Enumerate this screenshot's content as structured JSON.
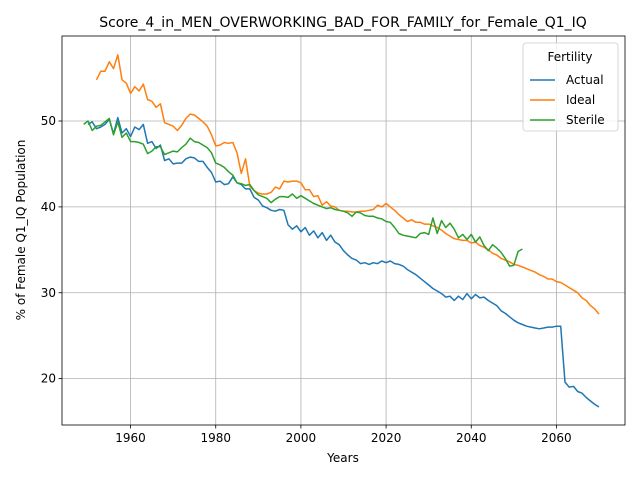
{
  "chart_data": {
    "type": "line",
    "title": "Score_4_in_MEN_OVERWORKING_BAD_FOR_FAMILY_for_Female_Q1_IQ",
    "xlabel": "Years",
    "ylabel": "% of Female Q1_IQ Population",
    "xlim": [
      1943.9,
      2076.1
    ],
    "ylim": [
      14.6,
      59.9
    ],
    "xticks": [
      1960,
      1980,
      2000,
      2020,
      2040,
      2060
    ],
    "yticks": [
      20,
      30,
      40,
      50
    ],
    "grid": true,
    "legend": {
      "title": "Fertility",
      "placement": "top-right"
    },
    "series": [
      {
        "name": "Actual",
        "color": "#1f77b4",
        "x": [
          1950,
          1951,
          1952,
          1953,
          1954,
          1955,
          1956,
          1957,
          1958,
          1959,
          1960,
          1961,
          1962,
          1963,
          1964,
          1965,
          1966,
          1967,
          1968,
          1969,
          1970,
          1971,
          1972,
          1973,
          1974,
          1975,
          1976,
          1977,
          1978,
          1979,
          1980,
          1981,
          1982,
          1983,
          1984,
          1985,
          1986,
          1987,
          1988,
          1989,
          1990,
          1991,
          1992,
          1993,
          1994,
          1995,
          1996,
          1997,
          1998,
          1999,
          2000,
          2001,
          2002,
          2003,
          2004,
          2005,
          2006,
          2007,
          2008,
          2009,
          2010,
          2011,
          2012,
          2013,
          2014,
          2015,
          2016,
          2017,
          2018,
          2019,
          2020,
          2021,
          2022,
          2023,
          2024,
          2025,
          2026,
          2027,
          2028,
          2029,
          2030,
          2031,
          2032,
          2033,
          2034,
          2035,
          2036,
          2037,
          2038,
          2039,
          2040,
          2041,
          2042,
          2043,
          2044,
          2045,
          2046,
          2047,
          2048,
          2049,
          2050,
          2051,
          2052,
          2053,
          2054,
          2055,
          2056,
          2057,
          2058,
          2059,
          2060,
          2061,
          2062,
          2063,
          2064,
          2065,
          2066,
          2067,
          2068,
          2069,
          2070
        ],
        "y": [
          49.6,
          49.9,
          49.1,
          49.3,
          49.6,
          50.2,
          48.5,
          50.4,
          48.6,
          49.1,
          48.2,
          49.3,
          49.0,
          49.6,
          47.4,
          47.6,
          46.8,
          47.2,
          45.4,
          45.6,
          45.0,
          45.1,
          45.1,
          45.6,
          45.8,
          45.7,
          45.3,
          45.3,
          44.6,
          44.0,
          42.9,
          43.0,
          42.6,
          42.7,
          43.5,
          42.8,
          42.6,
          42.1,
          42.1,
          41.1,
          40.8,
          40.1,
          39.9,
          39.6,
          39.5,
          39.7,
          39.6,
          37.9,
          37.4,
          37.8,
          37.1,
          37.6,
          36.7,
          37.2,
          36.4,
          37.0,
          36.1,
          36.7,
          35.9,
          35.6,
          34.9,
          34.4,
          34.0,
          33.8,
          33.4,
          33.5,
          33.3,
          33.5,
          33.4,
          33.7,
          33.5,
          33.7,
          33.4,
          33.3,
          33.1,
          32.7,
          32.4,
          32.1,
          31.7,
          31.3,
          30.9,
          30.5,
          30.2,
          29.9,
          29.5,
          29.6,
          29.1,
          29.6,
          29.2,
          29.9,
          29.3,
          29.8,
          29.4,
          29.5,
          29.1,
          28.8,
          28.5,
          27.9,
          27.6,
          27.2,
          26.8,
          26.5,
          26.3,
          26.1,
          26.0,
          25.9,
          25.8,
          25.9,
          26.0,
          26.0,
          26.1,
          26.1,
          19.6,
          19.0,
          19.1,
          18.5,
          18.3,
          17.8,
          17.4,
          17.0,
          16.7
        ]
      },
      {
        "name": "Ideal",
        "color": "#ff7f0e",
        "x": [
          1952,
          1953,
          1954,
          1955,
          1956,
          1957,
          1958,
          1959,
          1960,
          1961,
          1962,
          1963,
          1964,
          1965,
          1966,
          1967,
          1968,
          1969,
          1970,
          1971,
          1972,
          1973,
          1974,
          1975,
          1976,
          1977,
          1978,
          1979,
          1980,
          1981,
          1982,
          1983,
          1984,
          1985,
          1986,
          1987,
          1988,
          1989,
          1990,
          1991,
          1992,
          1993,
          1994,
          1995,
          1996,
          1997,
          1998,
          1999,
          2000,
          2001,
          2002,
          2003,
          2004,
          2005,
          2006,
          2007,
          2008,
          2009,
          2010,
          2011,
          2012,
          2013,
          2014,
          2015,
          2016,
          2017,
          2018,
          2019,
          2020,
          2021,
          2022,
          2023,
          2024,
          2025,
          2026,
          2027,
          2028,
          2029,
          2030,
          2031,
          2032,
          2033,
          2034,
          2035,
          2036,
          2037,
          2038,
          2039,
          2040,
          2041,
          2042,
          2043,
          2044,
          2045,
          2046,
          2047,
          2048,
          2049,
          2050,
          2051,
          2052,
          2053,
          2054,
          2055,
          2056,
          2057,
          2058,
          2059,
          2060,
          2061,
          2062,
          2063,
          2064,
          2065,
          2066,
          2067,
          2068,
          2069,
          2070
        ],
        "y": [
          54.8,
          55.8,
          55.8,
          56.9,
          56.1,
          57.7,
          54.8,
          54.4,
          53.2,
          54.0,
          53.5,
          54.3,
          52.5,
          52.3,
          51.6,
          52.0,
          49.8,
          49.6,
          49.4,
          48.9,
          49.5,
          50.3,
          50.8,
          50.7,
          50.3,
          49.9,
          49.4,
          48.4,
          47.1,
          47.2,
          47.5,
          47.4,
          47.5,
          46.3,
          43.9,
          45.6,
          42.4,
          41.9,
          41.6,
          41.5,
          41.5,
          41.7,
          42.3,
          42.1,
          43.0,
          42.9,
          43.0,
          43.0,
          42.8,
          42.0,
          42.0,
          41.2,
          41.3,
          40.2,
          40.6,
          40.1,
          40.0,
          39.6,
          39.5,
          39.5,
          39.4,
          39.4,
          39.5,
          39.5,
          39.6,
          39.7,
          40.2,
          40.0,
          40.4,
          40.0,
          39.6,
          39.1,
          38.7,
          38.3,
          38.5,
          38.2,
          38.2,
          38.0,
          38.0,
          37.8,
          37.6,
          37.3,
          36.9,
          36.6,
          36.3,
          36.2,
          36.1,
          36.1,
          35.8,
          35.9,
          35.5,
          35.3,
          35.0,
          34.6,
          34.4,
          34.0,
          33.8,
          33.6,
          33.3,
          33.2,
          33.0,
          32.8,
          32.6,
          32.4,
          32.1,
          31.9,
          31.6,
          31.6,
          31.3,
          31.2,
          30.9,
          30.6,
          30.3,
          30.0,
          29.4,
          29.1,
          28.5,
          28.1,
          27.5
        ]
      },
      {
        "name": "Sterile",
        "color": "#2ca02c",
        "x": [
          1949,
          1950,
          1951,
          1952,
          1953,
          1954,
          1955,
          1956,
          1957,
          1958,
          1959,
          1960,
          1961,
          1962,
          1963,
          1964,
          1965,
          1966,
          1967,
          1968,
          1969,
          1970,
          1971,
          1972,
          1973,
          1974,
          1975,
          1976,
          1977,
          1978,
          1979,
          1980,
          1981,
          1982,
          1983,
          1984,
          1985,
          1986,
          1987,
          1988,
          1989,
          1990,
          1991,
          1992,
          1993,
          1994,
          1995,
          1996,
          1997,
          1998,
          1999,
          2000,
          2001,
          2002,
          2003,
          2004,
          2005,
          2006,
          2007,
          2008,
          2009,
          2010,
          2011,
          2012,
          2013,
          2014,
          2015,
          2016,
          2017,
          2018,
          2019,
          2020,
          2021,
          2022,
          2023,
          2024,
          2025,
          2026,
          2027,
          2028,
          2029,
          2030,
          2031,
          2032,
          2033,
          2034,
          2035,
          2036,
          2037,
          2038,
          2039,
          2040,
          2041,
          2042,
          2043,
          2044,
          2045,
          2046,
          2047,
          2048,
          2049,
          2050,
          2051,
          2052
        ],
        "y": [
          49.6,
          50.0,
          48.9,
          49.4,
          49.5,
          49.9,
          50.3,
          48.4,
          49.9,
          48.1,
          48.6,
          47.6,
          47.6,
          47.5,
          47.3,
          46.2,
          46.5,
          47.0,
          47.0,
          46.1,
          46.3,
          46.5,
          46.4,
          46.9,
          47.3,
          48.0,
          47.6,
          47.5,
          47.2,
          46.9,
          46.3,
          45.1,
          44.9,
          44.6,
          44.1,
          43.7,
          42.8,
          42.7,
          42.5,
          42.6,
          41.9,
          41.4,
          41.2,
          41.0,
          40.5,
          40.9,
          41.2,
          41.2,
          41.1,
          41.5,
          41.0,
          41.3,
          41.0,
          40.7,
          40.4,
          40.2,
          40.0,
          39.8,
          39.9,
          39.7,
          39.6,
          39.5,
          39.3,
          38.9,
          39.4,
          39.3,
          39.0,
          38.9,
          38.9,
          38.7,
          38.6,
          38.3,
          38.2,
          37.6,
          36.9,
          36.7,
          36.6,
          36.5,
          36.4,
          36.9,
          37.0,
          36.8,
          38.7,
          36.9,
          38.4,
          37.6,
          38.1,
          37.4,
          36.4,
          36.8,
          36.2,
          36.8,
          35.9,
          36.5,
          35.5,
          34.9,
          35.6,
          35.2,
          34.7,
          34.0,
          33.1,
          33.2,
          34.8,
          35.1
        ]
      }
    ]
  }
}
